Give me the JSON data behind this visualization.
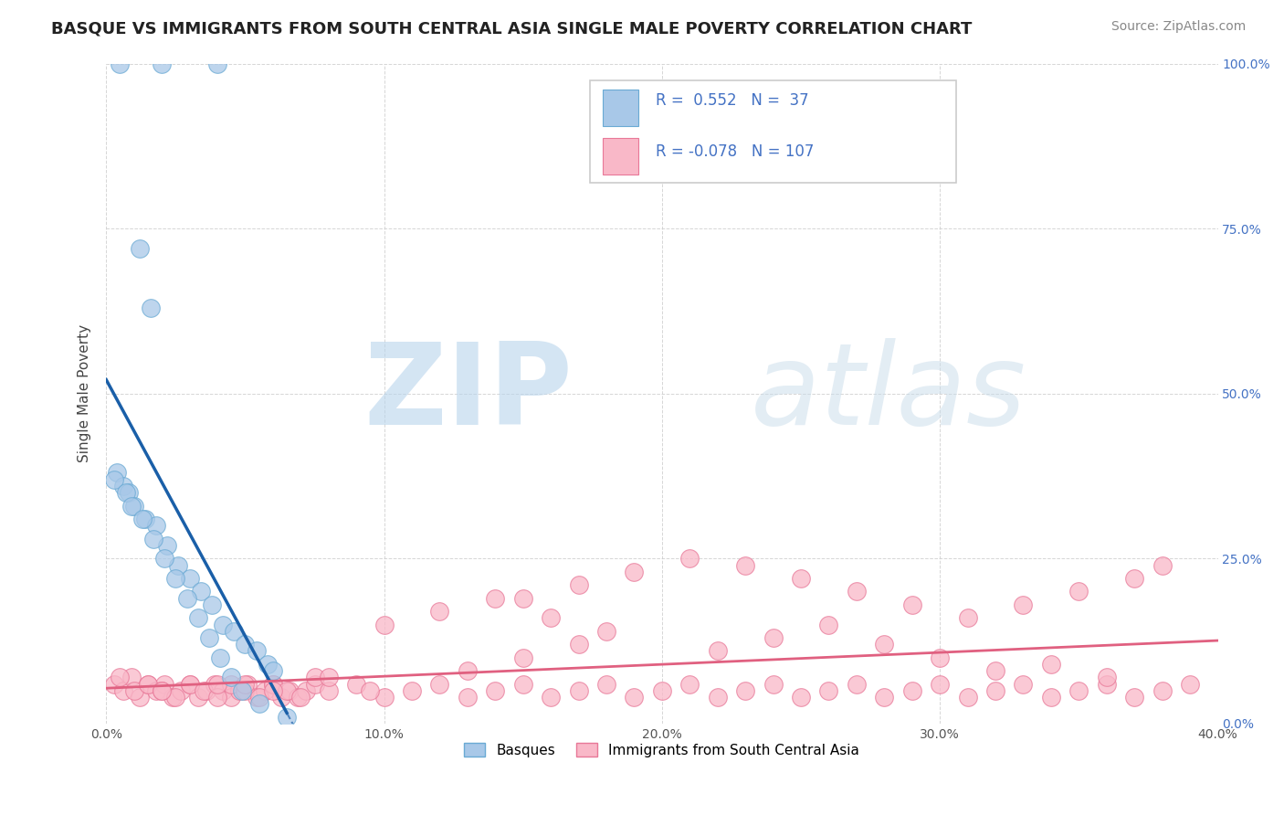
{
  "title": "BASQUE VS IMMIGRANTS FROM SOUTH CENTRAL ASIA SINGLE MALE POVERTY CORRELATION CHART",
  "source": "Source: ZipAtlas.com",
  "ylabel": "Single Male Poverty",
  "xlim": [
    0.0,
    0.4
  ],
  "ylim": [
    0.0,
    1.0
  ],
  "xticks": [
    0.0,
    0.1,
    0.2,
    0.3,
    0.4
  ],
  "yticks": [
    0.0,
    0.25,
    0.5,
    0.75,
    1.0
  ],
  "ytick_labels_right": [
    "0.0%",
    "25.0%",
    "50.0%",
    "75.0%",
    "100.0%"
  ],
  "xtick_labels": [
    "0.0%",
    "10.0%",
    "20.0%",
    "30.0%",
    "40.0%"
  ],
  "blue_fill": "#a8c8e8",
  "blue_edge": "#6aaad4",
  "pink_fill": "#f9b8c8",
  "pink_edge": "#e87898",
  "blue_line_color": "#1a5fa8",
  "pink_line_color": "#e06080",
  "legend_blue_label": "Basques",
  "legend_pink_label": "Immigrants from South Central Asia",
  "R_blue": "0.552",
  "N_blue": "37",
  "R_pink": "-0.078",
  "N_pink": "107",
  "watermark_zip": "ZIP",
  "watermark_atlas": "atlas",
  "grid_color": "#cccccc",
  "title_color": "#222222",
  "source_color": "#888888",
  "ylabel_color": "#444444",
  "right_tick_color": "#4472c4",
  "blue_scatter_x": [
    0.005,
    0.02,
    0.04,
    0.012,
    0.016,
    0.004,
    0.006,
    0.008,
    0.01,
    0.014,
    0.018,
    0.022,
    0.026,
    0.03,
    0.034,
    0.038,
    0.042,
    0.046,
    0.05,
    0.054,
    0.058,
    0.06,
    0.003,
    0.007,
    0.009,
    0.013,
    0.017,
    0.021,
    0.025,
    0.029,
    0.033,
    0.037,
    0.041,
    0.045,
    0.049,
    0.055,
    0.065
  ],
  "blue_scatter_y": [
    1.0,
    1.0,
    1.0,
    0.72,
    0.63,
    0.38,
    0.36,
    0.35,
    0.33,
    0.31,
    0.3,
    0.27,
    0.24,
    0.22,
    0.2,
    0.18,
    0.15,
    0.14,
    0.12,
    0.11,
    0.09,
    0.08,
    0.37,
    0.35,
    0.33,
    0.31,
    0.28,
    0.25,
    0.22,
    0.19,
    0.16,
    0.13,
    0.1,
    0.07,
    0.05,
    0.03,
    0.01
  ],
  "pink_scatter_x": [
    0.003,
    0.006,
    0.009,
    0.012,
    0.015,
    0.018,
    0.021,
    0.024,
    0.027,
    0.03,
    0.033,
    0.036,
    0.039,
    0.042,
    0.045,
    0.048,
    0.051,
    0.054,
    0.057,
    0.06,
    0.063,
    0.066,
    0.069,
    0.072,
    0.075,
    0.005,
    0.01,
    0.015,
    0.02,
    0.025,
    0.03,
    0.035,
    0.04,
    0.045,
    0.05,
    0.055,
    0.06,
    0.065,
    0.07,
    0.08,
    0.09,
    0.1,
    0.11,
    0.12,
    0.13,
    0.14,
    0.15,
    0.16,
    0.17,
    0.18,
    0.19,
    0.2,
    0.21,
    0.22,
    0.23,
    0.24,
    0.25,
    0.26,
    0.27,
    0.28,
    0.29,
    0.3,
    0.31,
    0.32,
    0.33,
    0.34,
    0.35,
    0.36,
    0.37,
    0.38,
    0.39,
    0.15,
    0.17,
    0.19,
    0.21,
    0.23,
    0.25,
    0.27,
    0.29,
    0.1,
    0.12,
    0.14,
    0.16,
    0.18,
    0.31,
    0.33,
    0.35,
    0.37,
    0.22,
    0.24,
    0.26,
    0.28,
    0.3,
    0.32,
    0.34,
    0.36,
    0.38,
    0.13,
    0.15,
    0.17,
    0.05,
    0.075,
    0.02,
    0.04,
    0.06,
    0.08,
    0.095
  ],
  "pink_scatter_y": [
    0.06,
    0.05,
    0.07,
    0.04,
    0.06,
    0.05,
    0.06,
    0.04,
    0.05,
    0.06,
    0.04,
    0.05,
    0.06,
    0.05,
    0.04,
    0.05,
    0.06,
    0.04,
    0.05,
    0.06,
    0.04,
    0.05,
    0.04,
    0.05,
    0.06,
    0.07,
    0.05,
    0.06,
    0.05,
    0.04,
    0.06,
    0.05,
    0.04,
    0.06,
    0.05,
    0.04,
    0.06,
    0.05,
    0.04,
    0.05,
    0.06,
    0.04,
    0.05,
    0.06,
    0.04,
    0.05,
    0.06,
    0.04,
    0.05,
    0.06,
    0.04,
    0.05,
    0.06,
    0.04,
    0.05,
    0.06,
    0.04,
    0.05,
    0.06,
    0.04,
    0.05,
    0.06,
    0.04,
    0.05,
    0.06,
    0.04,
    0.05,
    0.06,
    0.04,
    0.05,
    0.06,
    0.19,
    0.21,
    0.23,
    0.25,
    0.24,
    0.22,
    0.2,
    0.18,
    0.15,
    0.17,
    0.19,
    0.16,
    0.14,
    0.16,
    0.18,
    0.2,
    0.22,
    0.11,
    0.13,
    0.15,
    0.12,
    0.1,
    0.08,
    0.09,
    0.07,
    0.24,
    0.08,
    0.1,
    0.12,
    0.06,
    0.07,
    0.05,
    0.06,
    0.05,
    0.07,
    0.05
  ]
}
